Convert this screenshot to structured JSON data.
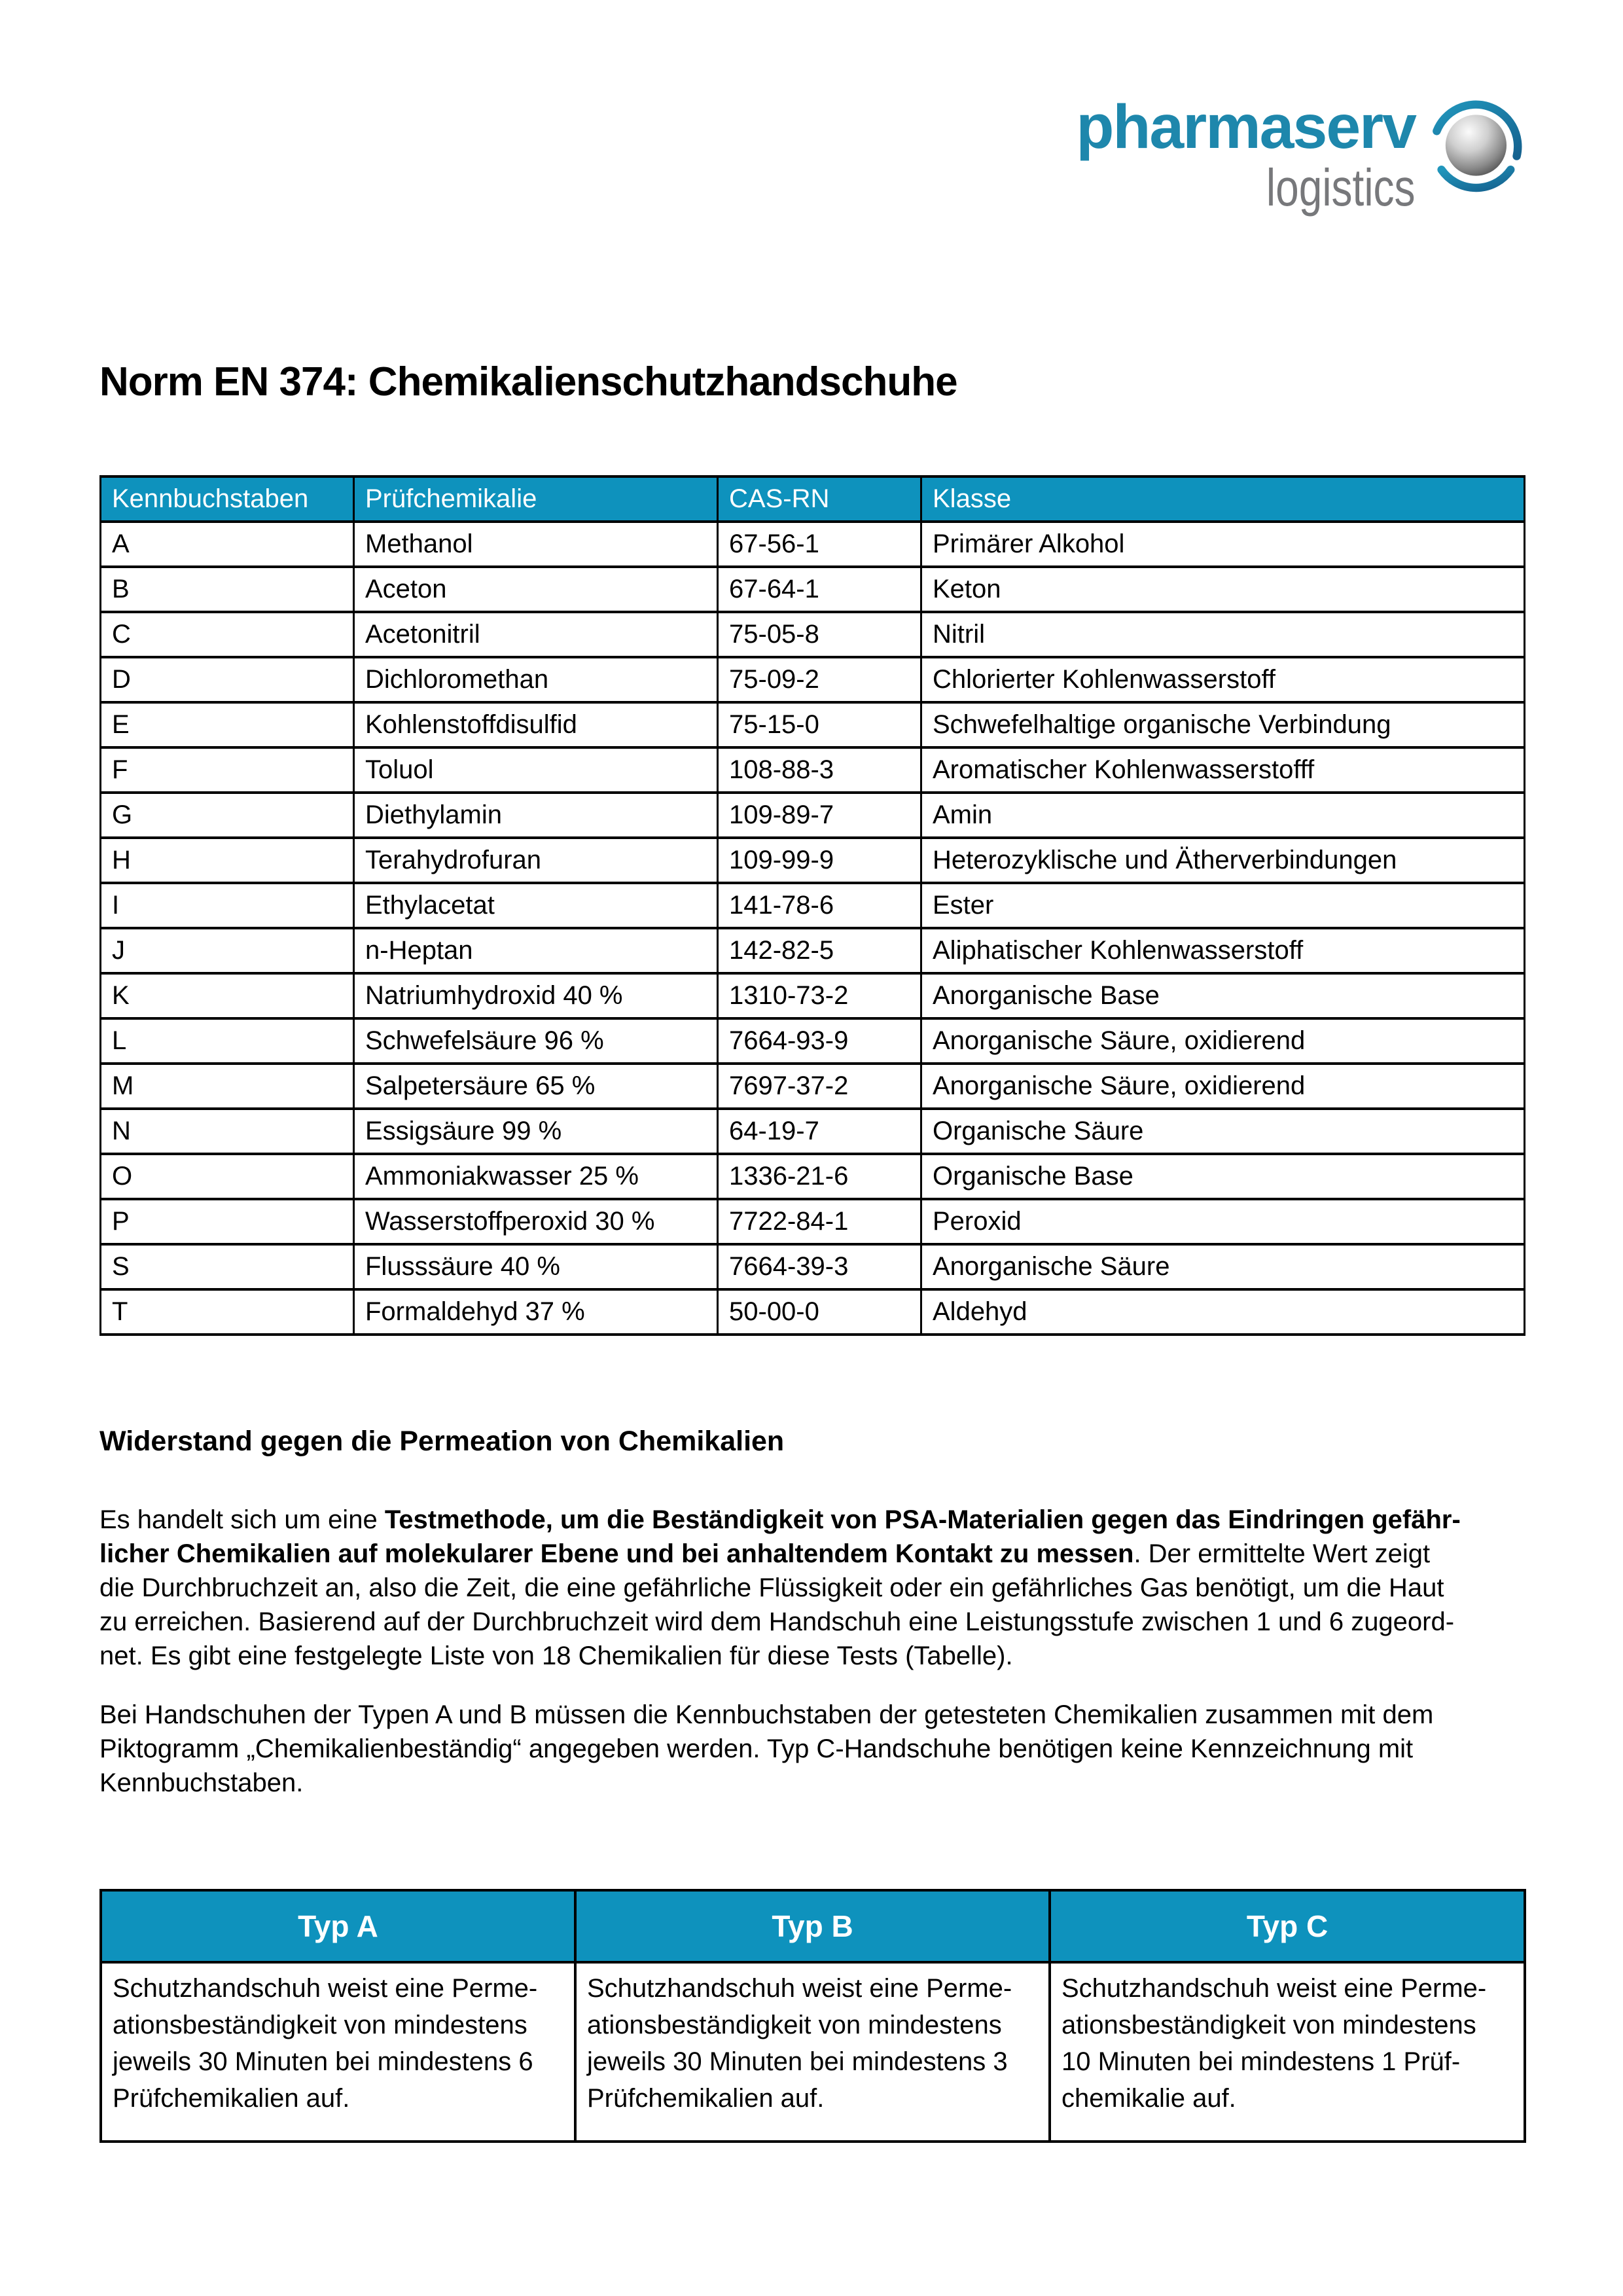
{
  "logo": {
    "brand": "pharmaserv",
    "sub": "logistics",
    "icon": "sphere-with-orbit-arcs"
  },
  "page_title": "Norm EN 374: Chemikalienschutzhandschuhe",
  "chem_table": {
    "headers": [
      "Kennbuchstaben",
      "Prüfchemikalie",
      "CAS-RN",
      "Klasse"
    ],
    "rows": [
      [
        "A",
        "Methanol",
        "67-56-1",
        "Primärer Alkohol"
      ],
      [
        "B",
        "Aceton",
        "67-64-1",
        "Keton"
      ],
      [
        "C",
        "Acetonitril",
        "75-05-8",
        "Nitril"
      ],
      [
        "D",
        "Dichloromethan",
        "75-09-2",
        "Chlorierter Kohlenwasserstoff"
      ],
      [
        "E",
        "Kohlenstoffdisulfid",
        "75-15-0",
        "Schwefelhaltige organische Verbindung"
      ],
      [
        "F",
        "Toluol",
        "108-88-3",
        "Aromatischer Kohlenwasserstofff"
      ],
      [
        "G",
        "Diethylamin",
        "109-89-7",
        "Amin"
      ],
      [
        "H",
        "Terahydrofuran",
        "109-99-9",
        "Heterozyklische und Ätherverbindungen"
      ],
      [
        "I",
        "Ethylacetat",
        "141-78-6",
        "Ester"
      ],
      [
        "J",
        "n-Heptan",
        "142-82-5",
        "Aliphatischer Kohlenwasserstoff"
      ],
      [
        "K",
        "Natriumhydroxid 40 %",
        "1310-73-2",
        "Anorganische Base"
      ],
      [
        "L",
        "Schwefelsäure 96 %",
        "7664-93-9",
        "Anorganische Säure, oxidierend"
      ],
      [
        "M",
        "Salpetersäure 65 %",
        "7697-37-2",
        "Anorganische Säure, oxidierend"
      ],
      [
        "N",
        "Essigsäure 99 %",
        "64-19-7",
        "Organische Säure"
      ],
      [
        "O",
        "Ammoniakwasser 25 %",
        "1336-21-6",
        "Organische Base"
      ],
      [
        "P",
        "Wasserstoffperoxid 30 %",
        "7722-84-1",
        "Peroxid"
      ],
      [
        "S",
        "Flusssäure 40 %",
        "7664-39-3",
        "Anorganische Säure"
      ],
      [
        "T",
        "Formaldehyd 37 %",
        "50-00-0",
        "Aldehyd"
      ]
    ]
  },
  "section": {
    "heading": "Widerstand gegen die Permeation von Chemikalien",
    "para1_lines": [
      [
        {
          "t": "Es handelt sich um eine ",
          "b": false
        },
        {
          "t": "Testmethode, um die Beständigkeit von PSA-Materialien gegen das Eindringen gefähr-",
          "b": true
        }
      ],
      [
        {
          "t": "licher Chemikalien auf molekularer Ebene und bei anhaltendem Kontakt zu messen",
          "b": true
        },
        {
          "t": ". Der ermittelte Wert zeigt",
          "b": false
        }
      ],
      [
        {
          "t": "die Durchbruchzeit an, also die Zeit, die eine gefährliche Flüssigkeit oder ein gefährliches Gas benötigt, um die Haut",
          "b": false
        }
      ],
      [
        {
          "t": "zu erreichen. Basierend auf der Durchbruchzeit wird dem Handschuh eine Leistungsstufe zwischen 1 und 6 zugeord-",
          "b": false
        }
      ],
      [
        {
          "t": "net. Es gibt eine festgelegte Liste von 18 Chemikalien für diese Tests (Tabelle).",
          "b": false
        }
      ]
    ],
    "para2_lines": [
      "Bei Handschuhen der Typen A und B müssen die Kennbuchstaben der getesteten Chemikalien zusammen mit dem",
      "Piktogramm „Chemikalienbeständig“ angegeben werden. Typ C-Handschuhe benötigen keine Kennzeichnung mit",
      "Kennbuchstaben."
    ]
  },
  "typ_table": {
    "headers": [
      "Typ A",
      "Typ B",
      "Typ C"
    ],
    "cells": [
      [
        "Schutzhandschuh weist eine Perme-",
        "ationsbeständigkeit von mindestens",
        "jeweils 30 Minuten bei mindestens 6",
        "Prüfchemikalien auf."
      ],
      [
        "Schutzhandschuh weist eine Perme-",
        "ationsbeständigkeit von mindestens",
        "jeweils 30 Minuten bei mindestens 3",
        "Prüfchemikalien auf."
      ],
      [
        "Schutzhandschuh weist eine Perme-",
        "ationsbeständigkeit von mindestens",
        "10 Minuten bei mindestens 1 Prüf-",
        "chemikalie auf."
      ]
    ]
  },
  "colors": {
    "table_header_bg": "#0e92bd",
    "logo_teal": "#1e87ac",
    "logo_gray": "#77787b"
  }
}
